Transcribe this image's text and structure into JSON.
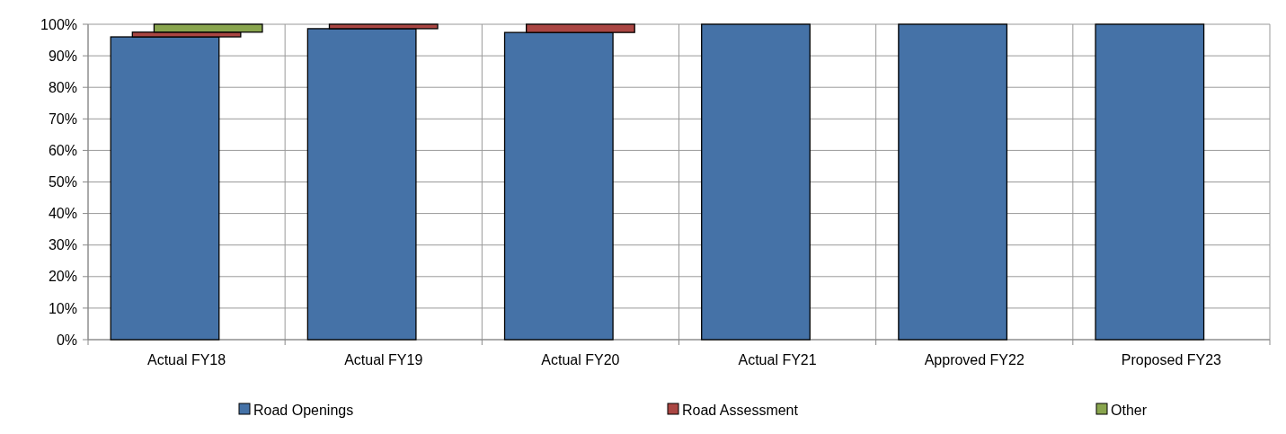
{
  "chart_data": {
    "type": "bar",
    "stacked": true,
    "categories": [
      "Actual FY18",
      "Actual FY19",
      "Actual FY20",
      "Actual FY21",
      "Approved FY22",
      "Proposed FY23"
    ],
    "series": [
      {
        "name": "Road Openings",
        "color": "#4572a7",
        "values": [
          96,
          98.6,
          97.4,
          100,
          100,
          100
        ]
      },
      {
        "name": "Road Assessment",
        "color": "#aa4643",
        "values": [
          1.5,
          1.4,
          2.6,
          0,
          0,
          0
        ]
      },
      {
        "name": "Other",
        "color": "#89a54e",
        "values": [
          2.5,
          0,
          0,
          0,
          0,
          0
        ]
      }
    ],
    "ylim": [
      0,
      100
    ],
    "yticks": [
      {
        "value": 0,
        "label": "0%"
      },
      {
        "value": 10,
        "label": "10%"
      },
      {
        "value": 20,
        "label": "20%"
      },
      {
        "value": 30,
        "label": "30%"
      },
      {
        "value": 40,
        "label": "40%"
      },
      {
        "value": 50,
        "label": "50%"
      },
      {
        "value": 60,
        "label": "60%"
      },
      {
        "value": 70,
        "label": "70%"
      },
      {
        "value": 80,
        "label": "80%"
      },
      {
        "value": 90,
        "label": "90%"
      },
      {
        "value": 100,
        "label": "100%"
      }
    ],
    "grid": true,
    "legend": "bottom"
  }
}
